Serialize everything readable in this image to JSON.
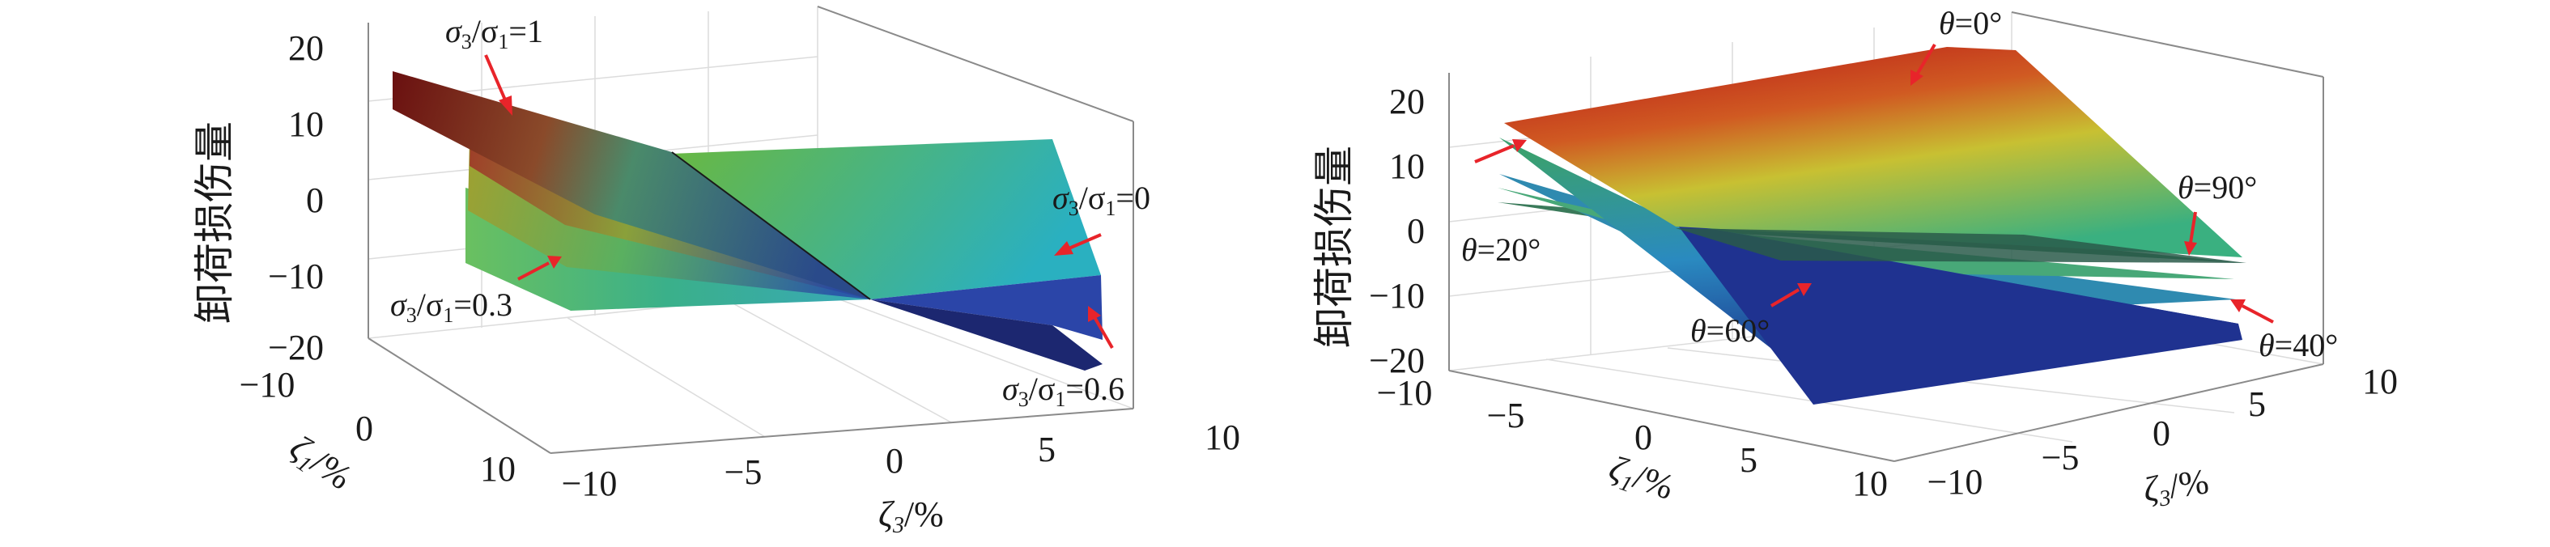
{
  "chart_data": [
    {
      "type": "surface",
      "zlabel": "卸荷损伤量",
      "xlabel": "ζ3/%",
      "ylabel": "ζ1/%",
      "xticks": [
        "−10",
        "−5",
        "0",
        "5",
        "10"
      ],
      "yticks": [
        "−10",
        "0",
        "10"
      ],
      "zticks": [
        "20",
        "10",
        "0",
        "−10",
        "−20"
      ],
      "xlim": [
        -10,
        10
      ],
      "ylim": [
        -10,
        10
      ],
      "zlim": [
        -20,
        20
      ],
      "series": [
        {
          "name": "σ3/σ1=1",
          "corners": {
            "x-10_y-10": 17,
            "x-10_y10": 9,
            "x10_y-10": -18,
            "x10_y10": -8
          }
        },
        {
          "name": "σ3/σ1=0.6",
          "corners": {
            "x-10_y-10": 12,
            "x-10_y10": 5,
            "x10_y-10": -14,
            "x10_y10": -6
          }
        },
        {
          "name": "σ3/σ1=0.3",
          "corners": {
            "x-10_y-10": 6,
            "x-10_y10": 1,
            "x10_y-10": -9,
            "x10_y10": -3
          }
        },
        {
          "name": "σ3/σ1=0",
          "corners": {
            "x-10_y-10": 0,
            "x-10_y10": -2,
            "x10_y-10": -4,
            "x10_y10": -1
          }
        }
      ],
      "annotations": [
        {
          "base": "σ",
          "sub": "3",
          "mid": "/σ",
          "sub2": "1",
          "tail": "=1"
        },
        {
          "base": "σ",
          "sub": "3",
          "mid": "/σ",
          "sub2": "1",
          "tail": "=0"
        },
        {
          "base": "σ",
          "sub": "3",
          "mid": "/σ",
          "sub2": "1",
          "tail": "=0.3"
        },
        {
          "base": "σ",
          "sub": "3",
          "mid": "/σ",
          "sub2": "1",
          "tail": "=0.6"
        }
      ]
    },
    {
      "type": "surface",
      "zlabel": "卸荷损伤量",
      "xlabel": "ζ3/%",
      "ylabel": "ζ1/%",
      "xticks": [
        "−10",
        "−5",
        "0",
        "5",
        "10"
      ],
      "yticks": [
        "−10",
        "−5",
        "0",
        "5",
        "10"
      ],
      "zticks": [
        "20",
        "10",
        "0",
        "−10",
        "−20"
      ],
      "xlim": [
        -10,
        10
      ],
      "ylim": [
        -10,
        10
      ],
      "zlim": [
        -20,
        20
      ],
      "series": [
        {
          "name": "θ=0°",
          "corners": {
            "x-10_y-10": 18,
            "x-10_y10": 19,
            "x10_y-10": -16,
            "x10_y10": -17
          }
        },
        {
          "name": "θ=20°",
          "corners": {
            "x-10_y-10": 14,
            "x-10_y10": 12,
            "x10_y-10": -12,
            "x10_y10": -10
          }
        },
        {
          "name": "θ=40°",
          "corners": {
            "x-10_y-10": 9,
            "x-10_y10": 6,
            "x10_y-10": -6,
            "x10_y10": -5
          }
        },
        {
          "name": "θ=60°",
          "corners": {
            "x-10_y-10": 4,
            "x-10_y10": 1,
            "x10_y-10": -2,
            "x10_y10": 0
          }
        },
        {
          "name": "θ=90°",
          "corners": {
            "x-10_y-10": 1,
            "x-10_y10": -1,
            "x10_y-10": 1,
            "x10_y10": 0
          }
        }
      ],
      "annotations": [
        {
          "base": "θ",
          "tail": "=0°"
        },
        {
          "base": "θ",
          "tail": "=20°"
        },
        {
          "base": "θ",
          "tail": "=60°"
        },
        {
          "base": "θ",
          "tail": "=90°"
        },
        {
          "base": "θ",
          "tail": "=40°"
        }
      ]
    }
  ],
  "colors": {
    "arrow": "#e8242a",
    "box": "#8a8a8a",
    "colormap_low": "#1c2a7a",
    "colormap_mid": "#31b39a",
    "colormap_high": "#a91a1a"
  }
}
